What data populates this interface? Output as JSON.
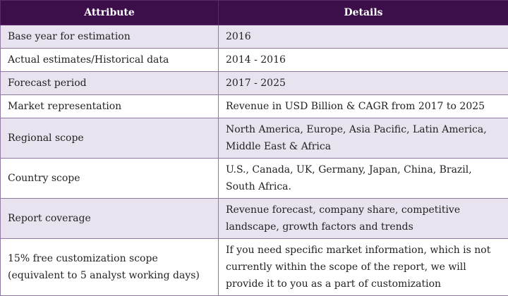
{
  "table": {
    "headers": [
      "Attribute",
      "Details"
    ],
    "rows": [
      {
        "attribute": "Base year for estimation",
        "details": "2016"
      },
      {
        "attribute": "Actual estimates/Historical data",
        "details": "2014 - 2016"
      },
      {
        "attribute": "Forecast period",
        "details": "2017 - 2025"
      },
      {
        "attribute": "Market representation",
        "details": "Revenue in USD Billion & CAGR from 2017 to 2025"
      },
      {
        "attribute": "Regional scope",
        "details": "North America, Europe, Asia Pacific, Latin America, Middle East & Africa"
      },
      {
        "attribute": "Country scope",
        "details": "U.S., Canada, UK, Germany, Japan, China, Brazil, South Africa."
      },
      {
        "attribute": "Report coverage",
        "details": "Revenue forecast, company share, competitive landscape, growth factors and trends"
      },
      {
        "attribute": "15% free customization scope (equivalent to 5 analyst working days)",
        "details": "If you need specific market information, which is not currently within the scope of the report, we will provide it to you as a part of customization"
      }
    ]
  },
  "colors": {
    "header_bg": "#3c0f4a",
    "header_text": "#ffffff",
    "row_alt_bg": "#e9e3ef",
    "border": "#8f7aa3"
  }
}
